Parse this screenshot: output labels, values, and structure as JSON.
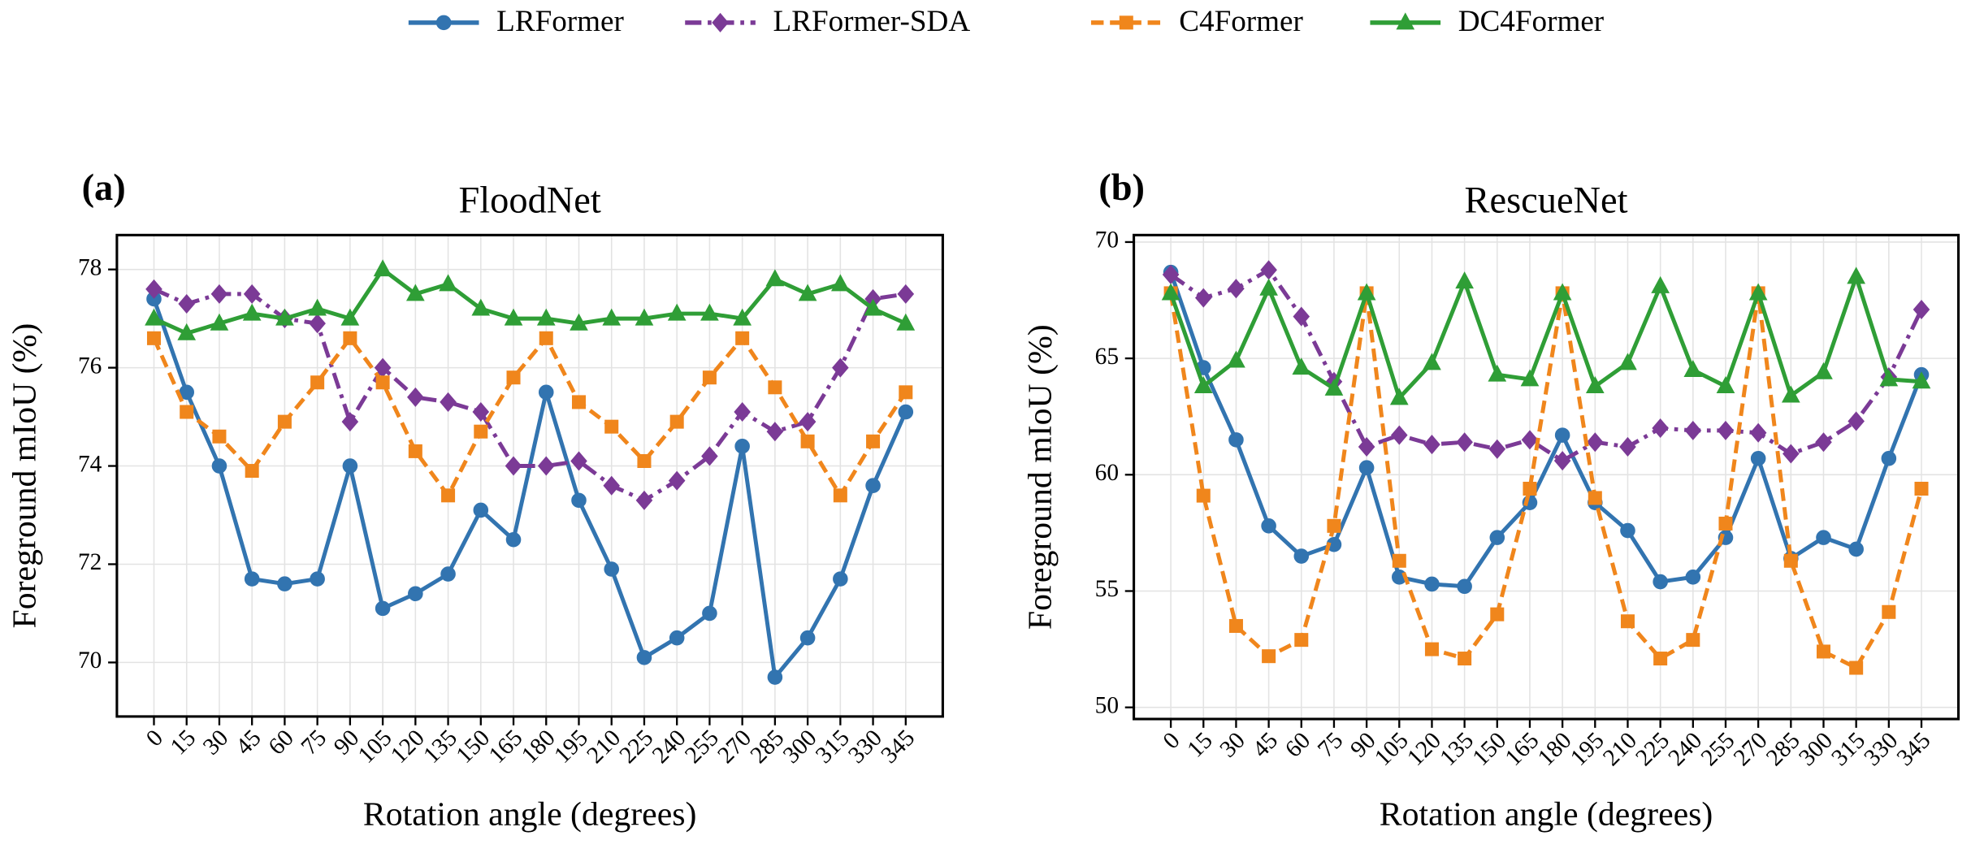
{
  "chart_data": [
    {
      "type": "line",
      "panel_label": "(a)",
      "title": "FloodNet",
      "x_label": "Rotation angle (degrees)",
      "y_label": "Foreground mIoU (%)",
      "x": [
        0,
        15,
        30,
        45,
        60,
        75,
        90,
        105,
        120,
        135,
        150,
        165,
        180,
        195,
        210,
        225,
        240,
        255,
        270,
        285,
        300,
        315,
        330,
        345
      ],
      "xlim": [
        -17,
        362
      ],
      "xticks": [
        0,
        15,
        30,
        45,
        60,
        75,
        90,
        105,
        120,
        135,
        150,
        165,
        180,
        195,
        210,
        225,
        240,
        255,
        270,
        285,
        300,
        315,
        330,
        345
      ],
      "ylim": [
        68.9,
        78.7
      ],
      "yticks": [
        70,
        72,
        74,
        76,
        78
      ],
      "grid": true,
      "series": [
        {
          "name": "LRFormer",
          "color": "#3274b0",
          "line_style": "solid",
          "marker": "circle",
          "values": [
            77.4,
            75.5,
            74.0,
            71.7,
            71.6,
            71.7,
            74.0,
            71.1,
            71.4,
            71.8,
            73.1,
            72.5,
            75.5,
            73.3,
            71.9,
            70.1,
            70.5,
            71.0,
            74.4,
            69.7,
            70.5,
            71.7,
            73.6,
            75.1
          ]
        },
        {
          "name": "LRFormer-SDA",
          "color": "#7b3a96",
          "line_style": "dash-dot",
          "marker": "diamond",
          "values": [
            77.6,
            77.3,
            77.5,
            77.5,
            77.0,
            76.9,
            74.9,
            76.0,
            75.4,
            75.3,
            75.1,
            74.0,
            74.0,
            74.1,
            73.6,
            73.3,
            73.7,
            74.2,
            75.1,
            74.7,
            74.9,
            76.0,
            77.4,
            77.5
          ]
        },
        {
          "name": "C4Former",
          "color": "#f0861c",
          "line_style": "dash",
          "marker": "square",
          "values": [
            76.6,
            75.1,
            74.6,
            73.9,
            74.9,
            75.7,
            76.6,
            75.7,
            74.3,
            73.4,
            74.7,
            75.8,
            76.6,
            75.3,
            74.8,
            74.1,
            74.9,
            75.8,
            76.6,
            75.6,
            74.5,
            73.4,
            74.5,
            75.5
          ]
        },
        {
          "name": "DC4Former",
          "color": "#2f9e36",
          "line_style": "solid",
          "marker": "triangle",
          "values": [
            77.0,
            76.7,
            76.9,
            77.1,
            77.0,
            77.2,
            77.0,
            78.0,
            77.5,
            77.7,
            77.2,
            77.0,
            77.0,
            76.9,
            77.0,
            77.0,
            77.1,
            77.1,
            77.0,
            77.8,
            77.5,
            77.7,
            77.2,
            76.9
          ]
        }
      ]
    },
    {
      "type": "line",
      "panel_label": "(b)",
      "title": "RescueNet",
      "x_label": "Rotation angle (degrees)",
      "y_label": "Foreground mIoU (%)",
      "x": [
        0,
        15,
        30,
        45,
        60,
        75,
        90,
        105,
        120,
        135,
        150,
        165,
        180,
        195,
        210,
        225,
        240,
        255,
        270,
        285,
        300,
        315,
        330,
        345
      ],
      "xlim": [
        -17,
        362
      ],
      "xticks": [
        0,
        15,
        30,
        45,
        60,
        75,
        90,
        105,
        120,
        135,
        150,
        165,
        180,
        195,
        210,
        225,
        240,
        255,
        270,
        285,
        300,
        315,
        330,
        345
      ],
      "ylim": [
        49.5,
        70.3
      ],
      "yticks": [
        50,
        55,
        60,
        65,
        70
      ],
      "grid": true,
      "series": [
        {
          "name": "LRFormer",
          "color": "#3274b0",
          "line_style": "solid",
          "marker": "circle",
          "values": [
            68.7,
            64.6,
            61.5,
            57.8,
            56.5,
            57.0,
            60.3,
            55.6,
            55.3,
            55.2,
            57.3,
            58.8,
            61.7,
            58.8,
            57.6,
            55.4,
            55.6,
            57.3,
            60.7,
            56.4,
            57.3,
            56.8,
            60.7,
            64.3
          ]
        },
        {
          "name": "LRFormer-SDA",
          "color": "#7b3a96",
          "line_style": "dash-dot",
          "marker": "diamond",
          "values": [
            68.6,
            67.6,
            68.0,
            68.8,
            66.8,
            64.0,
            61.2,
            61.7,
            61.3,
            61.4,
            61.1,
            61.5,
            60.6,
            61.4,
            61.2,
            62.0,
            61.9,
            61.9,
            61.8,
            60.9,
            61.4,
            62.3,
            64.2,
            67.1
          ]
        },
        {
          "name": "C4Former",
          "color": "#f0861c",
          "line_style": "dash",
          "marker": "square",
          "values": [
            67.8,
            59.1,
            53.5,
            52.2,
            52.9,
            57.8,
            67.8,
            56.3,
            52.5,
            52.1,
            54.0,
            59.4,
            67.8,
            59.0,
            53.7,
            52.1,
            52.9,
            57.9,
            67.8,
            56.3,
            52.4,
            51.7,
            54.1,
            59.4
          ]
        },
        {
          "name": "DC4Former",
          "color": "#2f9e36",
          "line_style": "solid",
          "marker": "triangle",
          "values": [
            67.8,
            63.8,
            64.9,
            68.0,
            64.6,
            63.7,
            67.8,
            63.3,
            64.8,
            68.3,
            64.3,
            64.1,
            67.8,
            63.8,
            64.8,
            68.1,
            64.5,
            63.8,
            67.8,
            63.4,
            64.4,
            68.5,
            64.1,
            64.0
          ]
        }
      ]
    }
  ]
}
